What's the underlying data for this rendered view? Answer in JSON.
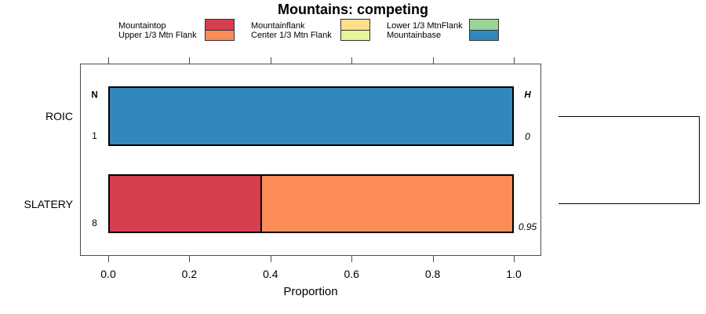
{
  "chart_data": {
    "type": "bar",
    "orientation": "horizontal-stacked",
    "title": "Mountains: competing",
    "xlabel": "Proportion",
    "xlim": [
      0,
      1
    ],
    "xticks": [
      0.0,
      0.2,
      0.4,
      0.6,
      0.8,
      1.0
    ],
    "xtick_labels": [
      "0.0",
      "0.2",
      "0.4",
      "0.6",
      "0.8",
      "1.0"
    ],
    "states": [
      {
        "name": "Mountaintop",
        "color": "#D53E4F"
      },
      {
        "name": "Upper 1/3 Mtn Flank",
        "color": "#FC8D59"
      },
      {
        "name": "Mountainflank",
        "color": "#FEE08B"
      },
      {
        "name": "Center 1/3 Mtn Flank",
        "color": "#E6F598"
      },
      {
        "name": "Lower 1/3 MtnFlank",
        "color": "#99D594"
      },
      {
        "name": "Mountainbase",
        "color": "#3288BD"
      }
    ],
    "columns": {
      "left_header": "N",
      "right_header": "H"
    },
    "rows": [
      {
        "label": "ROIC",
        "n": "1",
        "h": "0",
        "segments": [
          {
            "state": "Mountainbase",
            "value": 1.0
          }
        ]
      },
      {
        "label": "SLATERY",
        "n": "8",
        "h": "0.95",
        "segments": [
          {
            "state": "Mountaintop",
            "value": 0.375
          },
          {
            "state": "Upper 1/3 Mtn Flank",
            "value": 0.625
          }
        ]
      }
    ],
    "legend_order": [
      "Mountaintop",
      "Upper 1/3 Mtn Flank",
      "Mountainflank",
      "Center 1/3 Mtn Flank",
      "Lower 1/3 MtnFlank",
      "Mountainbase"
    ],
    "grid": false,
    "dendrogram": {
      "present": true
    }
  }
}
